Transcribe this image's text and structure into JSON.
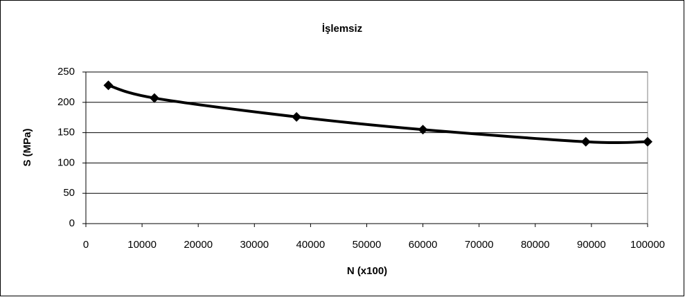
{
  "chart_data": {
    "type": "line",
    "title": "İşlemsiz",
    "x_label": "N (x100)",
    "y_label": "S (MPa)",
    "x": [
      4000,
      12200,
      37500,
      60000,
      89000,
      100000
    ],
    "series": [
      {
        "name": "İşlemsiz",
        "color": "#000000",
        "values": [
          228,
          207,
          176,
          155,
          135,
          135
        ]
      }
    ],
    "xlim": [
      0,
      100000
    ],
    "xticks": [
      0,
      10000,
      20000,
      30000,
      40000,
      50000,
      60000,
      70000,
      80000,
      90000,
      100000
    ],
    "ylim": [
      0,
      250
    ],
    "yticks": [
      0,
      50,
      100,
      150,
      200,
      250
    ],
    "grid": true,
    "smooth": true
  }
}
